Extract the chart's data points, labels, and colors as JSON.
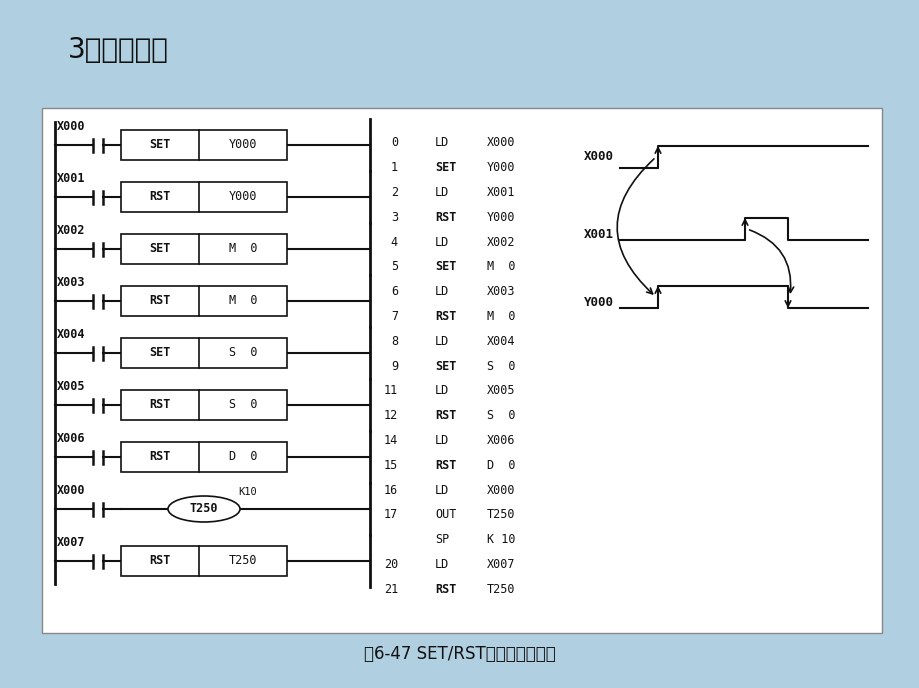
{
  "bg_color": "#b0cfe0",
  "panel_bg": "#ffffff",
  "title": "3．编程应用",
  "caption": "图6-47 SET/RST指令的编程应用",
  "ladder_rows": [
    {
      "contact": "X000",
      "cmd": "SET",
      "operand": "Y000",
      "type": "box"
    },
    {
      "contact": "X001",
      "cmd": "RST",
      "operand": "Y000",
      "type": "box"
    },
    {
      "contact": "X002",
      "cmd": "SET",
      "operand": "M  0",
      "type": "box"
    },
    {
      "contact": "X003",
      "cmd": "RST",
      "operand": "M  0",
      "type": "box"
    },
    {
      "contact": "X004",
      "cmd": "SET",
      "operand": "S  0",
      "type": "box"
    },
    {
      "contact": "X005",
      "cmd": "RST",
      "operand": "S  0",
      "type": "box"
    },
    {
      "contact": "X006",
      "cmd": "RST",
      "operand": "D  0",
      "type": "box"
    },
    {
      "contact": "X000",
      "cmd": "OUT",
      "operand": "T250",
      "k": "K10",
      "type": "ellipse"
    },
    {
      "contact": "X007",
      "cmd": "RST",
      "operand": "T250",
      "type": "box"
    }
  ],
  "mnemonics": [
    {
      "step": "0",
      "cmd": "LD",
      "operand": "X000",
      "bold": false
    },
    {
      "step": "1",
      "cmd": "SET",
      "operand": "Y000",
      "bold": true
    },
    {
      "step": "2",
      "cmd": "LD",
      "operand": "X001",
      "bold": false
    },
    {
      "step": "3",
      "cmd": "RST",
      "operand": "Y000",
      "bold": true
    },
    {
      "step": "4",
      "cmd": "LD",
      "operand": "X002",
      "bold": false
    },
    {
      "step": "5",
      "cmd": "SET",
      "operand": "M  0",
      "bold": true
    },
    {
      "step": "6",
      "cmd": "LD",
      "operand": "X003",
      "bold": false
    },
    {
      "step": "7",
      "cmd": "RST",
      "operand": "M  0",
      "bold": true
    },
    {
      "step": "8",
      "cmd": "LD",
      "operand": "X004",
      "bold": false
    },
    {
      "step": "9",
      "cmd": "SET",
      "operand": "S  0",
      "bold": true
    },
    {
      "step": "11",
      "cmd": "LD",
      "operand": "X005",
      "bold": false
    },
    {
      "step": "12",
      "cmd": "RST",
      "operand": "S  0",
      "bold": true
    },
    {
      "step": "14",
      "cmd": "LD",
      "operand": "X006",
      "bold": false
    },
    {
      "step": "15",
      "cmd": "RST",
      "operand": "D  0",
      "bold": true
    },
    {
      "step": "16",
      "cmd": "LD",
      "operand": "X000",
      "bold": false
    },
    {
      "step": "17",
      "cmd": "OUT",
      "operand": "T250",
      "bold": false
    },
    {
      "step": "",
      "cmd": "SP",
      "operand": "K 10",
      "bold": false
    },
    {
      "step": "20",
      "cmd": "LD",
      "operand": "X007",
      "bold": false
    },
    {
      "step": "21",
      "cmd": "RST",
      "operand": "T250",
      "bold": true
    }
  ],
  "text_color": "#111111",
  "line_color": "#111111",
  "title_fontsize": 20,
  "caption_fontsize": 12,
  "mono_fontsize": 8.5
}
